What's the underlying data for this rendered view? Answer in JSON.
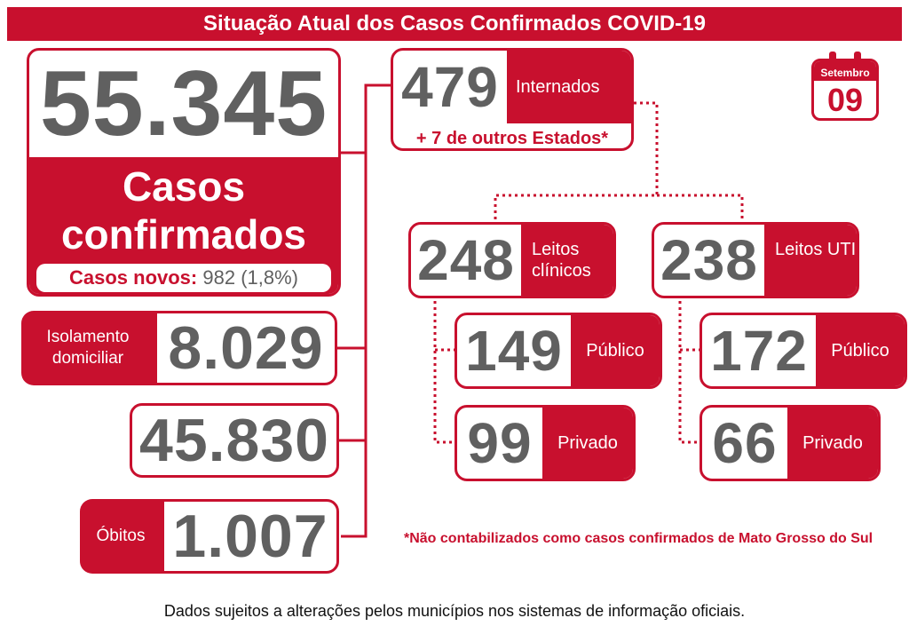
{
  "title": "Situação Atual dos Casos Confirmados COVID-19",
  "calendar": {
    "month": "Setembro",
    "day": "09"
  },
  "confirmed": {
    "number": "55.345",
    "label": "Casos confirmados",
    "new_cases_label": "Casos novos:",
    "new_cases_value": "982 (1,8%)"
  },
  "isolation": {
    "label": "Isolamento domiciliar",
    "number": "8.029"
  },
  "recovered": {
    "number": "45.830"
  },
  "deaths": {
    "label": "Óbitos",
    "number": "1.007"
  },
  "hospitalized": {
    "number": "479",
    "label": "Internados",
    "other_states": "+ 7 de outros Estados*"
  },
  "clinical_beds": {
    "number": "248",
    "label": "Leitos clínicos",
    "public": {
      "number": "149",
      "label": "Público"
    },
    "private": {
      "number": "99",
      "label": "Privado"
    }
  },
  "icu_beds": {
    "number": "238",
    "label": "Leitos UTI",
    "public": {
      "number": "172",
      "label": "Público"
    },
    "private": {
      "number": "66",
      "label": "Privado"
    }
  },
  "footnote": "*Não contabilizados como casos confirmados de Mato Grosso do Sul",
  "disclaimer": "Dados sujeitos a alterações pelos municípios nos sistemas de informação oficiais.",
  "colors": {
    "accent": "#c8102e",
    "number": "#606060"
  }
}
